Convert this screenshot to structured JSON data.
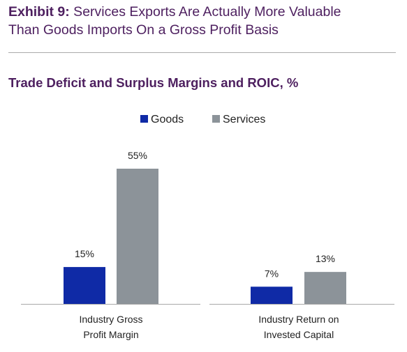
{
  "header": {
    "exhibit_label": "Exhibit 9:",
    "title_line1": " Services Exports Are Actually More Valuable",
    "title_line2": "Than Goods Imports On a Gross Profit Basis"
  },
  "colors": {
    "title": "#4d1f5f",
    "goods": "#0f2aa6",
    "services": "#8c9399",
    "axis": "#a8a8a8"
  },
  "chart_data": {
    "type": "bar",
    "title": "Trade Deficit and Surplus Margins and ROIC, %",
    "categories": [
      [
        "Industry Gross",
        "Profit Margin"
      ],
      [
        "Industry Return on",
        "Invested Capital"
      ]
    ],
    "series": [
      {
        "name": "Goods",
        "color": "#0f2aa6",
        "values": [
          15,
          7
        ],
        "labels": [
          "15%",
          "7%"
        ]
      },
      {
        "name": "Services",
        "color": "#8c9399",
        "values": [
          55,
          13
        ],
        "labels": [
          "55%",
          "13%"
        ]
      }
    ],
    "legend_position": "top-center",
    "ylim": [
      0,
      55
    ],
    "grid": false
  }
}
